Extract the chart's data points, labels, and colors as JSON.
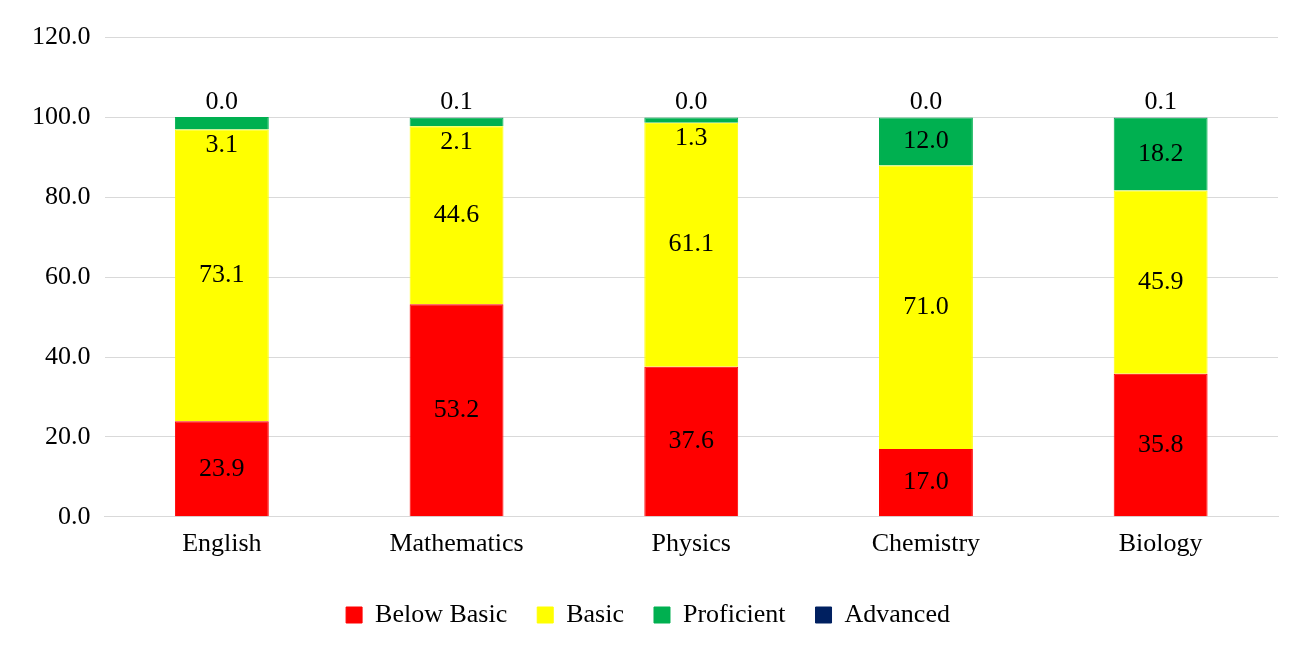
{
  "chart_data": {
    "type": "bar",
    "stacked": true,
    "categories": [
      "English",
      "Mathematics",
      "Physics",
      "Chemistry",
      "Biology"
    ],
    "series": [
      {
        "name": "Below Basic",
        "color": "#ff0000",
        "values": [
          23.9,
          53.2,
          37.6,
          17.0,
          35.8
        ],
        "value_labels": [
          "23.9",
          "53.2",
          "37.6",
          "17.0",
          "35.8"
        ]
      },
      {
        "name": "Basic",
        "color": "#ffff00",
        "values": [
          73.1,
          44.6,
          61.1,
          71.0,
          45.9
        ],
        "value_labels": [
          "73.1",
          "44.6",
          "61.1",
          "71.0",
          "45.9"
        ]
      },
      {
        "name": "Proficient",
        "color": "#00b050",
        "values": [
          3.1,
          2.1,
          1.3,
          12.0,
          18.2
        ],
        "value_labels": [
          "3.1",
          "2.1",
          "1.3",
          "12.0",
          "18.2"
        ]
      },
      {
        "name": "Advanced",
        "color": "#002060",
        "values": [
          0.0,
          0.1,
          0.0,
          0.0,
          0.1
        ],
        "value_labels": [
          "0.0",
          "0.1",
          "0.0",
          "0.0",
          "0.1"
        ]
      }
    ],
    "ylim": [
      0,
      120
    ],
    "yticks": [
      {
        "value": 0,
        "label": "0.0"
      },
      {
        "value": 20,
        "label": "20.0"
      },
      {
        "value": 40,
        "label": "40.0"
      },
      {
        "value": 60,
        "label": "60.0"
      },
      {
        "value": 80,
        "label": "80.0"
      },
      {
        "value": 100,
        "label": "100.0"
      },
      {
        "value": 120,
        "label": "120.0"
      }
    ],
    "grid": "y",
    "legend": "bottom"
  }
}
